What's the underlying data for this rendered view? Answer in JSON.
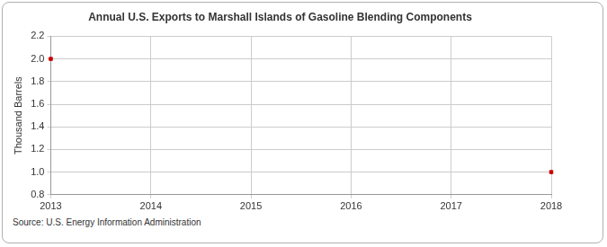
{
  "chart_data": {
    "type": "scatter",
    "title": "Annual U.S. Exports to Marshall Islands of Gasoline Blending Components",
    "y_label": "Thousand Barrels",
    "source": "Source: U.S. Energy Information Administration",
    "x": [
      2013,
      2018
    ],
    "values": [
      2.0,
      1.0
    ],
    "color": "#cc0000",
    "marker": "square",
    "xlim": [
      2013,
      2018
    ],
    "xticks": [
      2013,
      2014,
      2015,
      2016,
      2017,
      2018
    ],
    "ylim": [
      0.8,
      2.2
    ],
    "yticks": [
      0.8,
      {
        "value": 1.0,
        "label": "1.0"
      },
      1.2,
      1.4,
      1.6,
      1.8,
      {
        "value": 2.0,
        "label": "2.0"
      },
      2.2
    ],
    "grid": true
  }
}
